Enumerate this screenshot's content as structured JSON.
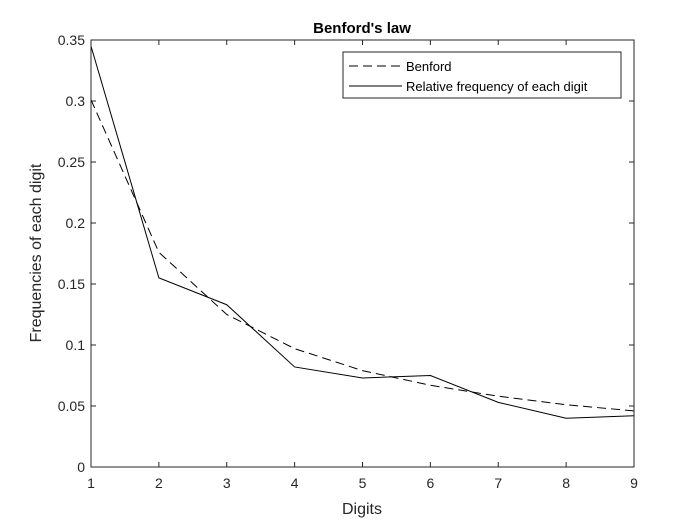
{
  "chart_data": {
    "type": "line",
    "title": "Benford's law",
    "xlabel": "Digits",
    "ylabel": "Frequencies of each digit",
    "x": [
      1,
      2,
      3,
      4,
      5,
      6,
      7,
      8,
      9
    ],
    "xlim": [
      1,
      9
    ],
    "ylim": [
      0,
      0.35
    ],
    "xticks": [
      "1",
      "2",
      "3",
      "4",
      "5",
      "6",
      "7",
      "8",
      "9"
    ],
    "yticks": [
      "0",
      "0.05",
      "0.1",
      "0.15",
      "0.2",
      "0.25",
      "0.3",
      "0.35"
    ],
    "grid": false,
    "legend_position": "top-right",
    "series": [
      {
        "name": "Benford",
        "style": "dashed",
        "color": "#000000",
        "values": [
          0.301,
          0.176,
          0.125,
          0.097,
          0.079,
          0.067,
          0.058,
          0.051,
          0.046
        ]
      },
      {
        "name": "Relative frequency of each digit",
        "style": "solid",
        "color": "#000000",
        "values": [
          0.345,
          0.155,
          0.133,
          0.082,
          0.073,
          0.075,
          0.053,
          0.04,
          0.042
        ]
      }
    ]
  }
}
